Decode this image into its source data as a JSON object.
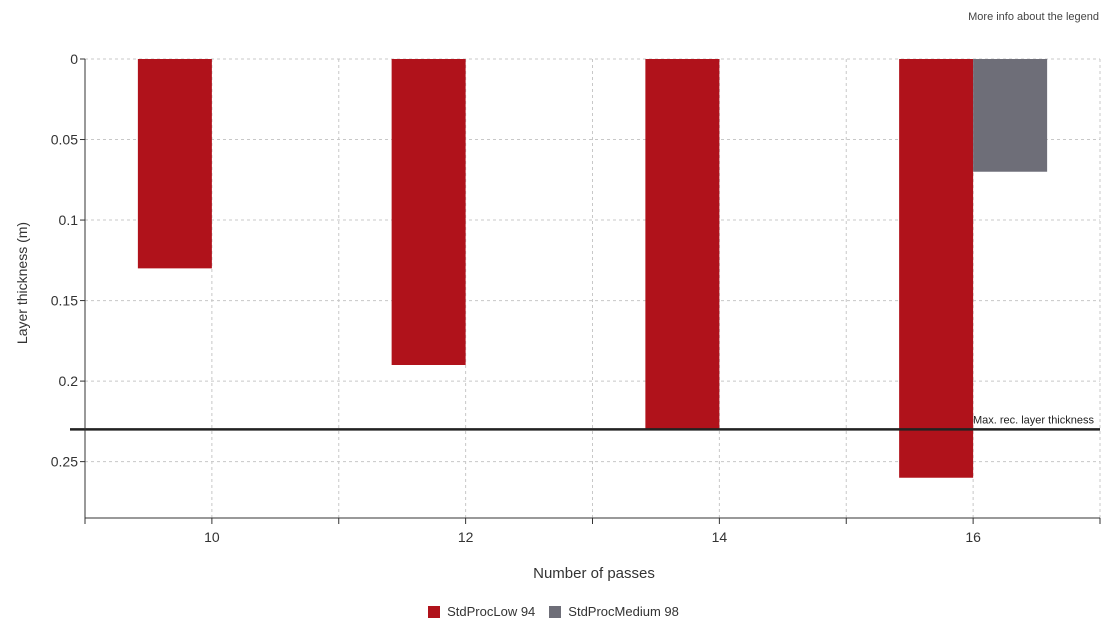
{
  "legend_info_link": "More info about the legend",
  "chart_data": {
    "type": "bar",
    "orientation": "vertical",
    "y_axis_inverted": true,
    "categories": [
      10,
      12,
      14,
      16
    ],
    "xlabel": "Number of passes",
    "ylabel": "Layer thickness (m)",
    "xlim": [
      9,
      17
    ],
    "xticks": [
      10,
      12,
      14,
      16
    ],
    "ylim": [
      0,
      0.285
    ],
    "yticks": [
      0,
      0.05,
      0.1,
      0.15,
      0.2,
      0.25
    ],
    "ytick_labels": [
      "0",
      "0.05",
      "0.1",
      "0.15",
      "0.2",
      "0.25"
    ],
    "grid": true,
    "legend_position": "bottom-center",
    "series": [
      {
        "name": "StdProcLow 94",
        "color": "#b0121b",
        "values": [
          0.13,
          0.19,
          0.23,
          0.26
        ]
      },
      {
        "name": "StdProcMedium 98",
        "color": "#6e6e78",
        "values": [
          null,
          null,
          null,
          0.07
        ]
      }
    ],
    "reference_line": {
      "label": "Max. rec. layer thickness",
      "value": 0.23,
      "color": "#222222"
    }
  }
}
